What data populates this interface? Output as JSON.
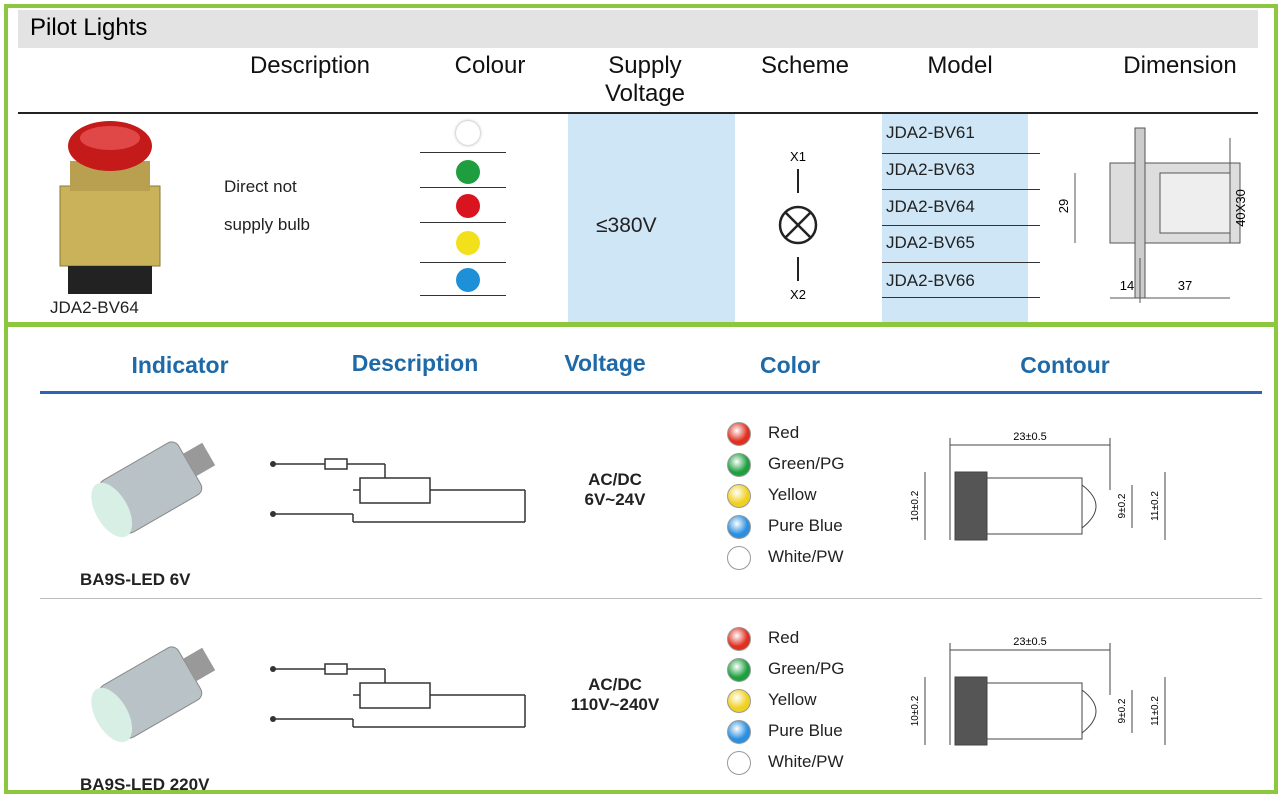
{
  "pilot_lights": {
    "title": "Pilot Lights",
    "headers": [
      "Description",
      "Colour",
      "Supply Voltage",
      "Scheme",
      "Model",
      "Dimension"
    ],
    "row": {
      "image_label": "JDA2-BV64",
      "description": "Direct not supply bulb",
      "colours": [
        "#ffffff",
        "#1f9e3f",
        "#d9141e",
        "#f2e01a",
        "#1e90d8"
      ],
      "supply_voltage": "≤380V",
      "scheme": {
        "top": "X1",
        "bottom": "X2"
      },
      "models": [
        "JDA2-BV61",
        "JDA2-BV63",
        "JDA2-BV64",
        "JDA2-BV65",
        "JDA2-BV66"
      ],
      "dimension": {
        "height": "29",
        "size": "40X30",
        "depth": "14",
        "length": "37"
      }
    }
  },
  "indicators": {
    "headers": [
      "Indicator",
      "Description",
      "Voltage",
      "Color",
      "Contour"
    ],
    "rows": [
      {
        "name": "BA9S-LED 6V",
        "voltage": "AC/DC 6V~24V",
        "colors": [
          {
            "label": "Red",
            "color": "#e03020"
          },
          {
            "label": "Green/PG",
            "color": "#1fa040"
          },
          {
            "label": "Yellow",
            "color": "#f0d020"
          },
          {
            "label": "Pure Blue",
            "color": "#2a8fe0"
          },
          {
            "label": "White/PW",
            "color": "#ffffff"
          }
        ],
        "contour": {
          "length": "23±0.5",
          "diameter": "10±0.2",
          "tip": "9±0.2",
          "overall": "11±0.2"
        }
      },
      {
        "name": "BA9S-LED 220V",
        "voltage": "AC/DC 110V~240V",
        "colors": [
          {
            "label": "Red",
            "color": "#e03020"
          },
          {
            "label": "Green/PG",
            "color": "#1fa040"
          },
          {
            "label": "Yellow",
            "color": "#f0d020"
          },
          {
            "label": "Pure Blue",
            "color": "#2a8fe0"
          },
          {
            "label": "White/PW",
            "color": "#ffffff"
          }
        ],
        "contour": {
          "length": "23±0.5",
          "diameter": "10±0.2",
          "tip": "9±0.2",
          "overall": "11±0.2"
        }
      }
    ]
  }
}
